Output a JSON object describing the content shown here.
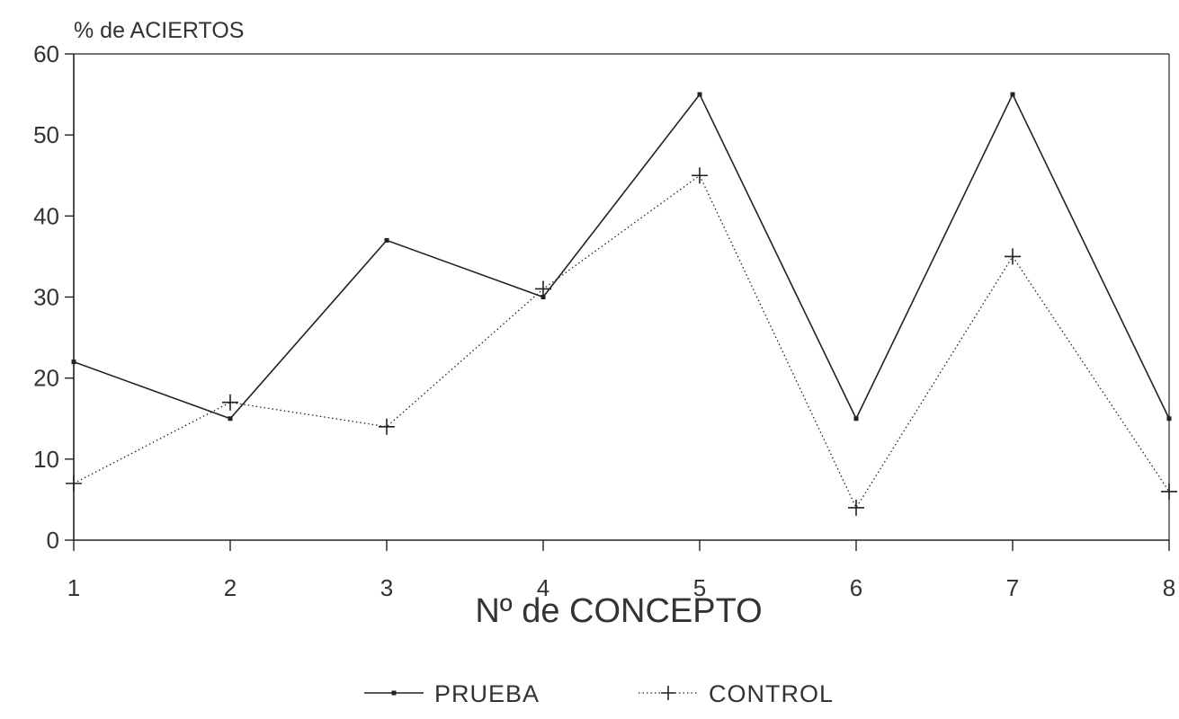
{
  "chart_data": {
    "type": "line",
    "title": "",
    "xlabel": "Nº de CONCEPTO",
    "ylabel": "% de ACIERTOS",
    "x": [
      1,
      2,
      3,
      4,
      5,
      6,
      7,
      8
    ],
    "xlim": [
      1,
      8
    ],
    "ylim": [
      0,
      60
    ],
    "y_ticks": [
      0,
      10,
      20,
      30,
      40,
      50,
      60
    ],
    "grid": false,
    "legend_position": "bottom-center",
    "series": [
      {
        "name": "PRUEBA",
        "values": [
          22,
          15,
          37,
          30,
          55,
          15,
          55,
          15
        ],
        "line_style": "solid",
        "marker": "dot",
        "color": "#222222"
      },
      {
        "name": "CONTROL",
        "values": [
          7,
          17,
          14,
          31,
          45,
          4,
          35,
          6
        ],
        "line_style": "dotted",
        "marker": "plus",
        "color": "#222222"
      }
    ]
  }
}
